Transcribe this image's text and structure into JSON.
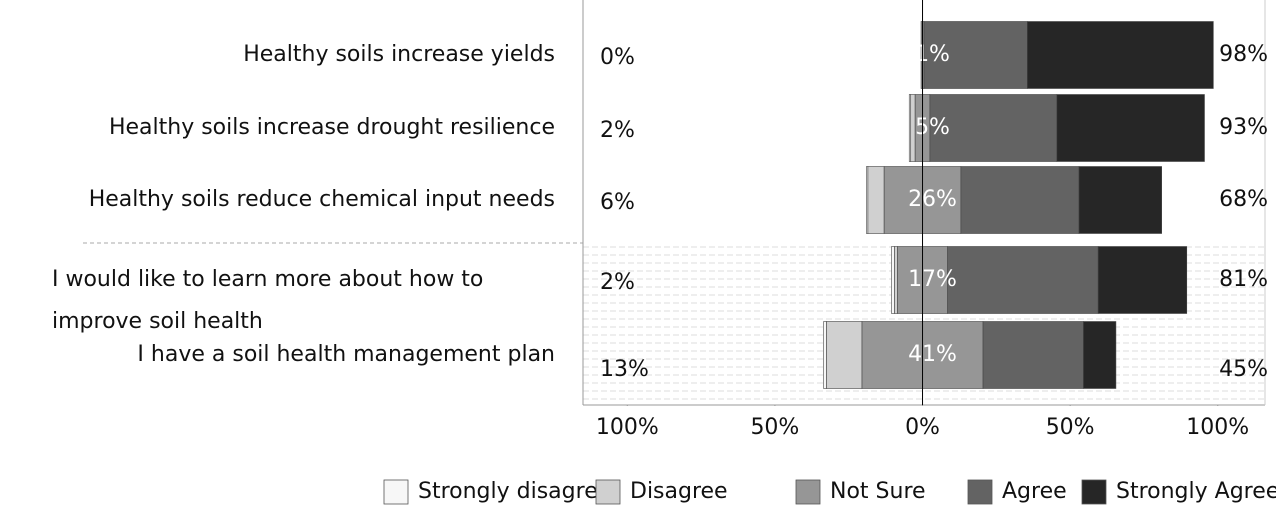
{
  "chart_data": {
    "type": "diverging_bar",
    "categories": [
      "Healthy soils increase yields",
      "Healthy soils increase drought resilience",
      "Healthy soils reduce chemical input needs",
      "I would like to learn more about how to\nimprove soil health",
      "I have a soil health management plan"
    ],
    "series": [
      {
        "name": "Strongly disagree",
        "color": "#f7f7f7",
        "values": [
          0,
          0.5,
          0.5,
          1,
          1
        ]
      },
      {
        "name": "Disagree",
        "color": "#d0d0d0",
        "values": [
          0,
          1.5,
          5.5,
          1,
          12
        ]
      },
      {
        "name": "Not Sure",
        "color": "#969696",
        "values": [
          1,
          5,
          26,
          17,
          41
        ]
      },
      {
        "name": "Agree",
        "color": "#636363",
        "values": [
          35,
          43,
          40,
          51,
          34
        ]
      },
      {
        "name": "Strongly Agree",
        "color": "#262626",
        "values": [
          63,
          50,
          28,
          30,
          11
        ]
      }
    ],
    "disagree_labels": [
      "0%",
      "2%",
      "6%",
      "2%",
      "13%"
    ],
    "neutral_labels": [
      "1%",
      "5%",
      "26%",
      "17%",
      "41%"
    ],
    "agree_labels": [
      "98%",
      "93%",
      "68%",
      "81%",
      "45%"
    ],
    "xlim": [
      -115,
      116
    ],
    "xticks": [
      {
        "value": -100,
        "label": "100%"
      },
      {
        "value": -50,
        "label": "50%"
      },
      {
        "value": 0,
        "label": "0%"
      },
      {
        "value": 50,
        "label": "50%"
      },
      {
        "value": 100,
        "label": "100%"
      }
    ],
    "legend": "bottom"
  }
}
